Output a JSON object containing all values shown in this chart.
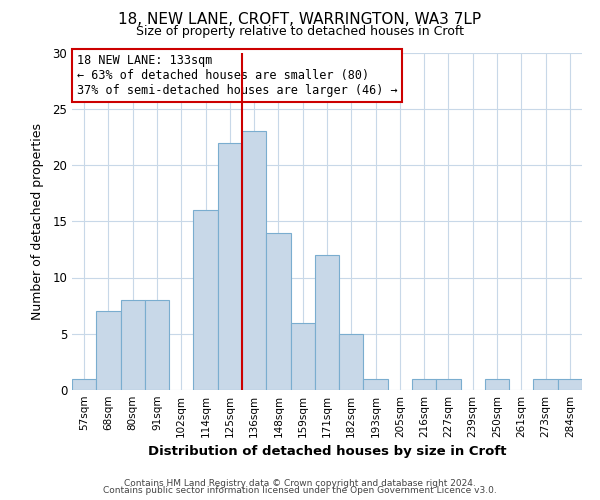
{
  "title": "18, NEW LANE, CROFT, WARRINGTON, WA3 7LP",
  "subtitle": "Size of property relative to detached houses in Croft",
  "xlabel": "Distribution of detached houses by size in Croft",
  "ylabel": "Number of detached properties",
  "bins": [
    "57sqm",
    "68sqm",
    "80sqm",
    "91sqm",
    "102sqm",
    "114sqm",
    "125sqm",
    "136sqm",
    "148sqm",
    "159sqm",
    "171sqm",
    "182sqm",
    "193sqm",
    "205sqm",
    "216sqm",
    "227sqm",
    "239sqm",
    "250sqm",
    "261sqm",
    "273sqm",
    "284sqm"
  ],
  "counts": [
    1,
    7,
    8,
    8,
    0,
    16,
    22,
    23,
    14,
    6,
    12,
    5,
    1,
    0,
    1,
    1,
    0,
    1,
    0,
    1,
    1
  ],
  "bar_color": "#c8d8e8",
  "bar_edge_color": "#7aadcf",
  "property_line_x": 7.0,
  "annotation_line1": "18 NEW LANE: 133sqm",
  "annotation_line2": "← 63% of detached houses are smaller (80)",
  "annotation_line3": "37% of semi-detached houses are larger (46) →",
  "annotation_box_color": "#cc0000",
  "vline_color": "#cc0000",
  "ylim": [
    0,
    30
  ],
  "yticks": [
    0,
    5,
    10,
    15,
    20,
    25,
    30
  ],
  "footer1": "Contains HM Land Registry data © Crown copyright and database right 2024.",
  "footer2": "Contains public sector information licensed under the Open Government Licence v3.0.",
  "background_color": "#ffffff",
  "grid_color": "#c8d8e8"
}
